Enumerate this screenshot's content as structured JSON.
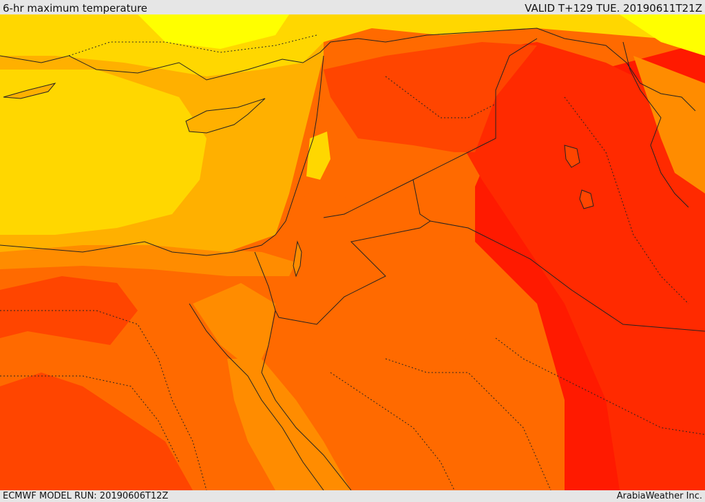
{
  "header": {
    "title": "6-hr maximum temperature",
    "valid": "VALID T+129 TUE. 20190611T21Z"
  },
  "footer": {
    "model_run": "ECMWF MODEL RUN: 20190606T12Z",
    "credit": "ArabiaWeather Inc."
  },
  "map": {
    "colors": {
      "pale_yellow": "#ffff00",
      "yellow": "#ffd700",
      "gold": "#ffb000",
      "orange": "#ff8c00",
      "dark_orange": "#ff6a00",
      "red_orange": "#ff4500",
      "red": "#ff1a00",
      "border": "#222222"
    }
  }
}
